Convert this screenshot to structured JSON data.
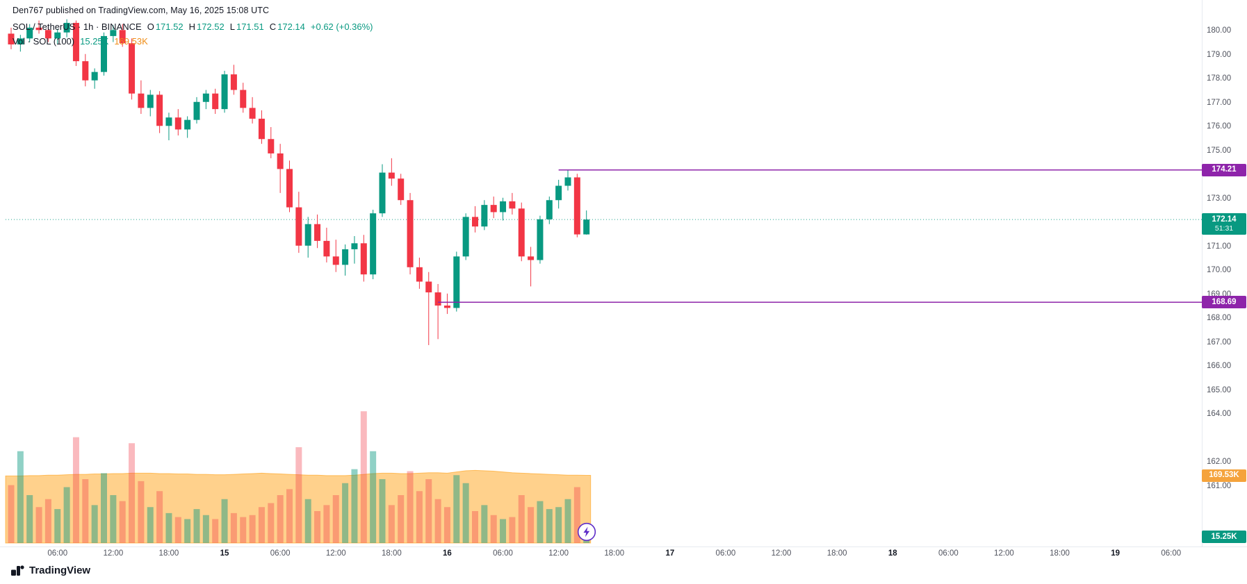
{
  "header": {
    "published": "Den767 published on TradingView.com, May 16, 2025 15:08 UTC"
  },
  "legend": {
    "title": "SOL / TetherUS · 1h · BINANCE",
    "o_label": "O",
    "o": "171.52",
    "h_label": "H",
    "h": "172.52",
    "l_label": "L",
    "l": "171.51",
    "c_label": "C",
    "c": "172.14",
    "change": "+0.62 (+0.36%)",
    "vol_label": "Vol · SOL (100)",
    "vol_current": "15.25K",
    "vol_ma": "169.53K"
  },
  "tags": {
    "resistance": "174.21",
    "support": "168.69",
    "last_price": "172.14",
    "countdown": "51:31",
    "vol_ma": "169.53K",
    "vol_current": "15.25K"
  },
  "footer": {
    "brand": "TradingView"
  },
  "colors": {
    "up": "#089981",
    "down": "#f23645",
    "vol_up": "rgba(8,153,129,0.45)",
    "vol_down": "rgba(242,54,69,0.35)",
    "vol_ma_fill": "rgba(255,152,0,0.45)",
    "vol_ma_line": "#ff9800",
    "level": "#8e24aa",
    "bolt": "#5d2cc8"
  },
  "chart_data": {
    "type": "candlestick",
    "title": "SOL / TetherUS · 1h · BINANCE",
    "interval": "1h",
    "current_price": 172.14,
    "countdown": "51:31",
    "vol_current_value": 15.25,
    "vol_ma_value": 169.53,
    "price_axis": {
      "min": 161,
      "max": 180,
      "step": 1,
      "hidden": [
        174,
        172,
        163
      ]
    },
    "levels": [
      {
        "value": 174.21,
        "from_index": 59
      },
      {
        "value": 168.69,
        "from_index": 46
      }
    ],
    "candles": [
      [
        179.9,
        180.15,
        179.25,
        179.45
      ],
      [
        179.45,
        179.85,
        179.15,
        179.7
      ],
      [
        179.7,
        180.3,
        179.55,
        180.15
      ],
      [
        180.15,
        180.45,
        179.9,
        180.05
      ],
      [
        180.05,
        180.2,
        179.55,
        179.7
      ],
      [
        179.7,
        180.1,
        179.45,
        179.95
      ],
      [
        179.95,
        180.5,
        179.75,
        180.35
      ],
      [
        180.35,
        180.45,
        178.55,
        178.75
      ],
      [
        178.75,
        179.05,
        177.7,
        177.95
      ],
      [
        177.95,
        178.45,
        177.6,
        178.3
      ],
      [
        178.3,
        179.95,
        178.15,
        179.8
      ],
      [
        179.8,
        180.25,
        179.55,
        180.05
      ],
      [
        180.05,
        180.3,
        179.35,
        179.5
      ],
      [
        179.5,
        179.7,
        177.15,
        177.4
      ],
      [
        177.4,
        177.95,
        176.55,
        176.8
      ],
      [
        176.8,
        177.55,
        176.45,
        177.35
      ],
      [
        177.35,
        177.5,
        175.75,
        176.05
      ],
      [
        176.05,
        176.6,
        175.45,
        176.4
      ],
      [
        176.4,
        176.75,
        175.65,
        175.9
      ],
      [
        175.9,
        176.45,
        175.55,
        176.3
      ],
      [
        176.3,
        177.25,
        176.15,
        177.05
      ],
      [
        177.05,
        177.55,
        176.75,
        177.4
      ],
      [
        177.4,
        177.6,
        176.55,
        176.75
      ],
      [
        176.75,
        178.35,
        176.6,
        178.2
      ],
      [
        178.2,
        178.6,
        177.35,
        177.55
      ],
      [
        177.55,
        177.85,
        176.6,
        176.8
      ],
      [
        176.8,
        177.25,
        176.15,
        176.35
      ],
      [
        176.35,
        176.7,
        175.3,
        175.5
      ],
      [
        175.5,
        176.0,
        174.7,
        174.9
      ],
      [
        174.9,
        175.3,
        173.25,
        174.25
      ],
      [
        174.25,
        174.6,
        172.45,
        172.65
      ],
      [
        172.65,
        173.3,
        170.75,
        171.05
      ],
      [
        171.05,
        172.25,
        170.55,
        171.95
      ],
      [
        171.95,
        172.35,
        170.95,
        171.25
      ],
      [
        171.25,
        171.8,
        170.35,
        170.6
      ],
      [
        170.6,
        171.3,
        169.95,
        170.25
      ],
      [
        170.25,
        171.1,
        169.8,
        170.9
      ],
      [
        170.9,
        171.45,
        170.3,
        171.15
      ],
      [
        171.15,
        171.5,
        169.55,
        169.85
      ],
      [
        169.85,
        172.55,
        169.65,
        172.4
      ],
      [
        172.4,
        174.45,
        172.25,
        174.1
      ],
      [
        174.1,
        174.7,
        173.55,
        173.85
      ],
      [
        173.85,
        174.05,
        172.75,
        172.95
      ],
      [
        172.95,
        173.25,
        169.85,
        170.15
      ],
      [
        170.15,
        170.55,
        169.25,
        169.55
      ],
      [
        169.55,
        169.95,
        166.9,
        169.1
      ],
      [
        169.1,
        169.45,
        167.15,
        168.55
      ],
      [
        168.55,
        169.05,
        168.2,
        168.45
      ],
      [
        168.45,
        170.8,
        168.3,
        170.6
      ],
      [
        170.6,
        172.4,
        170.45,
        172.25
      ],
      [
        172.25,
        172.7,
        171.6,
        171.85
      ],
      [
        171.85,
        172.95,
        171.7,
        172.75
      ],
      [
        172.75,
        173.1,
        172.2,
        172.45
      ],
      [
        172.45,
        173.05,
        172.1,
        172.9
      ],
      [
        172.9,
        173.25,
        172.35,
        172.6
      ],
      [
        172.6,
        172.85,
        170.4,
        170.6
      ],
      [
        170.6,
        171.0,
        169.35,
        170.45
      ],
      [
        170.45,
        172.3,
        170.3,
        172.15
      ],
      [
        172.15,
        173.1,
        171.95,
        172.95
      ],
      [
        172.95,
        173.8,
        172.6,
        173.55
      ],
      [
        173.55,
        174.21,
        173.35,
        173.9
      ],
      [
        173.9,
        174.05,
        171.4,
        171.52
      ],
      [
        171.52,
        172.52,
        171.51,
        172.14
      ]
    ],
    "volumes": [
      145,
      230,
      120,
      90,
      110,
      85,
      140,
      265,
      160,
      95,
      175,
      120,
      105,
      250,
      155,
      90,
      130,
      75,
      65,
      60,
      85,
      70,
      60,
      110,
      75,
      65,
      70,
      90,
      100,
      120,
      135,
      240,
      110,
      80,
      95,
      120,
      150,
      185,
      330,
      230,
      160,
      95,
      120,
      180,
      130,
      160,
      110,
      90,
      170,
      150,
      80,
      95,
      70,
      60,
      65,
      120,
      90,
      105,
      85,
      90,
      110,
      140,
      15.25
    ],
    "vol_ma": [
      168,
      168,
      169,
      169,
      170,
      170,
      171,
      172,
      172,
      173,
      173,
      174,
      174,
      175,
      175,
      175,
      174,
      174,
      173,
      173,
      172,
      172,
      171,
      171,
      172,
      173,
      174,
      175,
      174,
      173,
      172,
      171,
      170,
      170,
      169,
      169,
      169,
      170,
      172,
      174,
      175,
      175,
      174,
      174,
      175,
      176,
      176,
      175,
      178,
      181,
      182,
      181,
      180,
      178,
      176,
      175,
      174,
      173,
      172,
      171,
      170,
      170,
      169.53
    ],
    "time_axis": [
      {
        "i": 5,
        "label": "06:00"
      },
      {
        "i": 11,
        "label": "12:00"
      },
      {
        "i": 17,
        "label": "18:00"
      },
      {
        "i": 23,
        "label": "15",
        "major": true
      },
      {
        "i": 29,
        "label": "06:00"
      },
      {
        "i": 35,
        "label": "12:00"
      },
      {
        "i": 41,
        "label": "18:00"
      },
      {
        "i": 47,
        "label": "16",
        "major": true
      },
      {
        "i": 53,
        "label": "06:00"
      },
      {
        "i": 59,
        "label": "12:00"
      },
      {
        "i": 65,
        "label": "18:00"
      },
      {
        "i": 71,
        "label": "17",
        "major": true
      },
      {
        "i": 77,
        "label": "06:00"
      },
      {
        "i": 83,
        "label": "12:00"
      },
      {
        "i": 89,
        "label": "18:00"
      },
      {
        "i": 95,
        "label": "18",
        "major": true
      },
      {
        "i": 101,
        "label": "06:00"
      },
      {
        "i": 107,
        "label": "12:00"
      },
      {
        "i": 113,
        "label": "18:00"
      },
      {
        "i": 119,
        "label": "19",
        "major": true
      },
      {
        "i": 125,
        "label": "06:00"
      }
    ]
  }
}
